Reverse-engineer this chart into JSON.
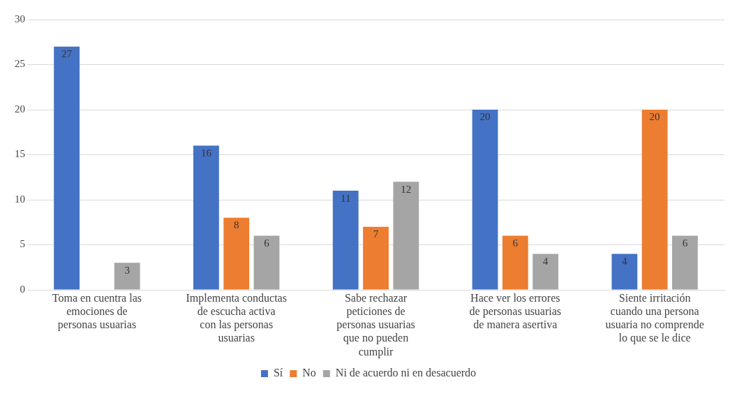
{
  "chart_data": {
    "type": "bar",
    "categories": [
      "Toma en cuentra las emociones de personas usuarias",
      "Implementa conductas de escucha activa con las personas usuarias",
      "Sabe rechazar peticiones de personas usuarias que no pueden cumplir",
      "Hace ver los errores de personas usuarias de manera asertiva",
      "Siente irritación cuando una persona usuaria no comprende lo que se le dice"
    ],
    "series": [
      {
        "name": "Sí",
        "color": "#4472c4",
        "values": [
          27,
          16,
          11,
          20,
          4
        ]
      },
      {
        "name": "No",
        "color": "#ed7d31",
        "values": [
          null,
          8,
          7,
          6,
          20
        ]
      },
      {
        "name": "Ni de acuerdo ni en desacuerdo",
        "color": "#a5a5a5",
        "values": [
          3,
          6,
          12,
          4,
          6
        ]
      }
    ],
    "ylim": [
      0,
      30
    ],
    "yticks": [
      0,
      5,
      10,
      15,
      20,
      25,
      30
    ],
    "grid": "y",
    "legend": "bottom",
    "data_labels": true
  }
}
